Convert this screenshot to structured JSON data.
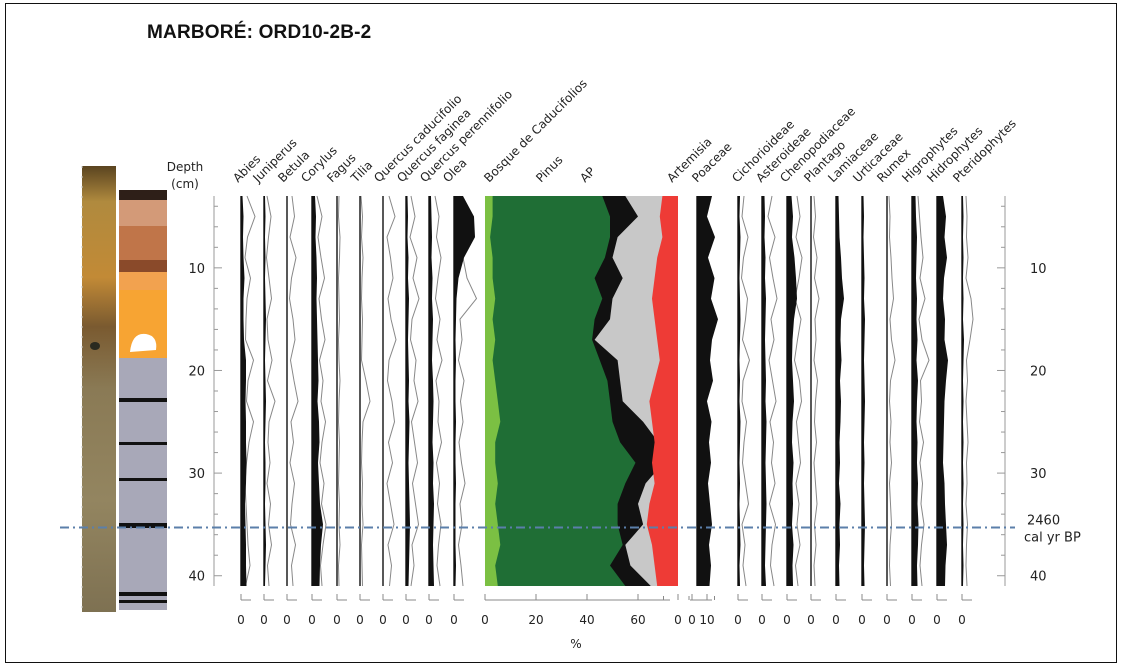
{
  "title": "MARBORÉ: ORD10-2B-2",
  "chart_data": {
    "type": "area",
    "title": "MARBORÉ: ORD10-2B-2",
    "depth_label": [
      "Depth",
      "(cm)"
    ],
    "ylabel": "Depth (cm)",
    "ylim": [
      3,
      41
    ],
    "y_ticks": [
      10,
      20,
      30,
      40
    ],
    "xlabel": "%",
    "depth": [
      3,
      5,
      7,
      9,
      11,
      13,
      15,
      17,
      19,
      21,
      23,
      25,
      27,
      29,
      31,
      33,
      35,
      37,
      39,
      41
    ],
    "annotation": {
      "depth": 35.3,
      "label": [
        "2460",
        "cal yr BP"
      ]
    },
    "taxa": [
      {
        "name": "Abies",
        "style": "silhouette",
        "values": [
          0.3,
          0.5,
          0.4,
          0.5,
          0.7,
          0.5,
          0.5,
          0.6,
          1.0,
          1.0,
          0.9,
          1.0,
          1.0,
          1.1,
          1.0,
          0.8,
          0.9,
          1.0,
          1.0,
          1.1
        ],
        "exag": [
          1.2,
          2.8,
          1.3,
          0.8,
          1.9,
          1.2,
          1.0,
          0.9,
          2.5,
          1.4,
          1.1,
          2.5,
          1.6,
          1.1,
          0.8,
          1.0,
          1.2,
          1.4,
          1.8,
          0.9
        ]
      },
      {
        "name": "Juniperus",
        "style": "silhouette",
        "values": [
          0.2,
          0.3,
          0.2,
          0.3,
          0.2,
          0.3,
          0.4,
          0.3,
          0.2,
          0.3,
          0.4,
          0.3,
          0.2,
          0.3,
          0.3,
          0.2,
          0.3,
          0.4,
          0.3,
          0.2
        ],
        "exag": [
          0.6,
          1.4,
          0.9,
          0.5,
          1.0,
          1.5,
          0.6,
          0.8,
          1.6,
          0.7,
          2.2,
          1.0,
          0.8,
          1.2,
          0.6,
          1.3,
          0.9,
          1.5,
          0.7,
          1.0
        ]
      },
      {
        "name": "Betula",
        "style": "line",
        "values": [],
        "exag": [
          1.0,
          1.5,
          0.6,
          1.8,
          0.9,
          0.5,
          1.2,
          1.6,
          0.7,
          1.4,
          2.2,
          0.8,
          1.3,
          0.6,
          1.5,
          1.0,
          0.7,
          1.7,
          0.9,
          1.2
        ]
      },
      {
        "name": "Corylus",
        "style": "silhouette",
        "values": [
          0.6,
          0.8,
          0.7,
          0.9,
          1.0,
          0.9,
          1.0,
          1.1,
          1.2,
          1.3,
          1.1,
          1.4,
          1.5,
          1.2,
          1.4,
          1.6,
          2.2,
          1.8,
          1.6,
          1.5
        ],
        "exag": [
          1.0,
          2.0,
          1.2,
          1.8,
          2.5,
          1.4,
          1.9,
          2.6,
          1.5,
          2.2,
          1.8,
          2.7,
          2.0,
          1.6,
          2.4,
          1.9,
          2.8,
          2.2,
          1.7,
          2.0
        ]
      },
      {
        "name": "Fagus",
        "style": "line",
        "values": [],
        "exag": [
          0.4,
          0.3,
          0.6,
          0.5,
          0.3,
          0.4,
          0.5,
          0.3,
          0.4,
          0.6,
          0.4,
          0.3,
          0.5,
          0.4,
          0.3,
          0.5,
          0.4,
          0.6,
          0.3,
          0.4
        ]
      },
      {
        "name": "Tilia",
        "style": "line",
        "values": [],
        "exag": [
          0.2,
          0.5,
          0.3,
          0.6,
          0.4,
          0.3,
          0.5,
          0.4,
          0.3,
          1.2,
          2.0,
          0.6,
          0.4,
          0.3,
          0.5,
          0.4,
          0.6,
          0.3,
          0.4,
          0.5
        ]
      },
      {
        "name": "Quercus caducifolio",
        "style": "line",
        "values": [],
        "exag": [
          1.2,
          2.4,
          0.8,
          1.5,
          2.0,
          1.0,
          1.6,
          2.6,
          1.2,
          0.9,
          1.8,
          2.3,
          1.1,
          1.9,
          0.8,
          1.5,
          2.2,
          1.0,
          1.7,
          1.3
        ]
      },
      {
        "name": "Quercus faginea",
        "style": "silhouette",
        "values": [
          0.3,
          0.4,
          0.3,
          0.5,
          0.4,
          0.6,
          0.5,
          0.4,
          0.5,
          0.6,
          0.5,
          0.7,
          0.6,
          0.5,
          0.6,
          0.7,
          0.8,
          0.7,
          0.6,
          0.5
        ],
        "exag": [
          1.0,
          1.8,
          0.8,
          2.2,
          1.4,
          2.6,
          1.2,
          0.9,
          2.0,
          1.6,
          2.4,
          1.1,
          1.7,
          2.3,
          1.3,
          1.9,
          2.5,
          1.2,
          1.6,
          1.0
        ]
      },
      {
        "name": "Quercus perennifolio",
        "style": "silhouette",
        "values": [
          0.4,
          0.5,
          0.6,
          0.5,
          0.7,
          0.6,
          0.8,
          0.7,
          0.6,
          0.8,
          0.9,
          0.8,
          0.7,
          0.9,
          0.8,
          1.0,
          0.9,
          0.8,
          0.9,
          1.0
        ],
        "exag": [
          1.2,
          2.0,
          1.5,
          2.4,
          1.8,
          1.3,
          2.2,
          1.6,
          2.6,
          1.4,
          2.0,
          1.8,
          2.5,
          1.5,
          2.1,
          1.7,
          2.4,
          1.9,
          1.6,
          2.2
        ]
      },
      {
        "name": "Olea",
        "style": "silhouette",
        "values": [
          1.8,
          4.0,
          4.2,
          2.0,
          0.9,
          0.5,
          0.4,
          0.3,
          0.4,
          0.3,
          0.3,
          0.4,
          0.3,
          0.3,
          0.4,
          0.3,
          0.3,
          0.3,
          0.4,
          0.3
        ],
        "exag": [
          1.0,
          2.2,
          1.5,
          1.8,
          2.6,
          4.5,
          1.2,
          1.6,
          0.9,
          2.0,
          1.3,
          1.8,
          1.0,
          1.5,
          2.2,
          1.2,
          1.6,
          0.9,
          1.4,
          1.8
        ]
      },
      {
        "name": "Bosque de Caducifolios",
        "style": "stack",
        "values": [
          3,
          3,
          2,
          3,
          3,
          4,
          3,
          4,
          3,
          4,
          5,
          6,
          4,
          4,
          5,
          4,
          5,
          6,
          4,
          5
        ]
      },
      {
        "name": "Pinus",
        "style": "stack",
        "values": [
          43,
          46,
          47,
          44,
          40,
          42,
          40,
          38,
          42,
          44,
          44,
          44,
          49,
          55,
          50,
          48,
          47,
          48,
          45,
          50
        ]
      },
      {
        "name": "AP",
        "style": "stack",
        "values": [
          55,
          60,
          52,
          50,
          54,
          50,
          49,
          43,
          52,
          53,
          54,
          62,
          68,
          70,
          63,
          60,
          62,
          55,
          57,
          65
        ]
      },
      {
        "name": "Artemisia",
        "style": "stack",
        "values": [
          6,
          7,
          6,
          8,
          9,
          10,
          9,
          8,
          7,
          9,
          11,
          10,
          9,
          10,
          9,
          11,
          12,
          10,
          9,
          8
        ]
      },
      {
        "name": "Poaceae",
        "style": "silhouette",
        "values": [
          3.0,
          2.0,
          3.6,
          2.2,
          3.5,
          2.8,
          4.2,
          3.0,
          2.6,
          3.2,
          2.0,
          2.9,
          2.4,
          2.8,
          2.2,
          2.6,
          3.0,
          2.4,
          2.8,
          2.5
        ]
      },
      {
        "name": "Cichorioideae",
        "style": "silhouette",
        "values": [
          0.4,
          0.3,
          0.5,
          0.4,
          0.3,
          0.4,
          0.5,
          0.4,
          0.3,
          0.4,
          0.3,
          0.5,
          0.4,
          0.3,
          0.4,
          0.3,
          0.4,
          0.5,
          0.3,
          0.4
        ],
        "exag": [
          1.2,
          0.8,
          2.0,
          1.1,
          0.7,
          1.9,
          1.5,
          0.9,
          2.3,
          1.0,
          0.8,
          1.7,
          1.2,
          0.9,
          1.5,
          2.1,
          0.8,
          1.4,
          1.0,
          1.6
        ]
      },
      {
        "name": "Asteroideae",
        "style": "silhouette",
        "values": [
          0.5,
          0.6,
          0.5,
          0.7,
          0.6,
          0.8,
          0.7,
          0.6,
          0.7,
          0.8,
          0.7,
          0.9,
          0.8,
          0.7,
          0.8,
          0.9,
          0.8,
          0.7,
          0.6,
          0.8
        ],
        "exag": [
          2.0,
          1.2,
          2.6,
          1.5,
          2.2,
          3.0,
          1.8,
          2.4,
          1.4,
          2.1,
          2.8,
          1.6,
          2.3,
          1.9,
          2.6,
          1.5,
          2.7,
          2.0,
          1.7,
          2.4
        ]
      },
      {
        "name": "Chenopodiaceae",
        "style": "silhouette",
        "values": [
          0.9,
          1.2,
          1.0,
          1.5,
          1.8,
          2.0,
          1.4,
          1.1,
          1.0,
          1.2,
          1.4,
          1.1,
          1.0,
          1.3,
          1.1,
          1.2,
          1.0,
          1.3,
          1.1,
          1.2
        ],
        "exag": [
          2.0,
          2.6,
          1.8,
          3.0,
          2.4,
          1.6,
          2.8,
          2.1,
          1.5,
          2.5,
          2.9,
          1.9,
          2.3,
          2.7,
          1.8,
          2.4,
          2.0,
          2.6,
          1.7,
          2.2
        ]
      },
      {
        "name": "Plantago",
        "style": "line",
        "values": [],
        "exag": [
          0.6,
          0.9,
          0.5,
          1.2,
          0.7,
          1.6,
          0.8,
          1.0,
          0.6,
          1.3,
          0.9,
          0.7,
          1.1,
          0.6,
          0.9,
          1.2,
          0.7,
          1.0,
          0.6,
          0.8
        ]
      },
      {
        "name": "Lamiaceae",
        "style": "silhouette",
        "values": [
          0.5,
          0.6,
          0.7,
          1.0,
          1.2,
          1.6,
          1.0,
          0.9,
          1.1,
          0.8,
          1.0,
          0.9,
          0.7,
          0.8,
          0.6,
          0.9,
          0.7,
          0.8,
          0.6,
          0.7
        ]
      },
      {
        "name": "Urticaceae",
        "style": "silhouette",
        "values": [
          0.3,
          0.4,
          0.3,
          0.4,
          0.5,
          0.4,
          0.6,
          0.5,
          0.4,
          0.5,
          0.6,
          0.5,
          0.4,
          0.5,
          0.4,
          0.5,
          0.6,
          0.5,
          0.4,
          0.5
        ]
      },
      {
        "name": "Rumex",
        "style": "line",
        "values": [],
        "exag": [
          0.4,
          0.6,
          0.5,
          0.8,
          1.0,
          1.3,
          0.6,
          0.9,
          1.6,
          0.7,
          0.5,
          0.8,
          0.6,
          0.9,
          0.5,
          0.7,
          0.9,
          0.6,
          0.5,
          0.7
        ]
      },
      {
        "name": "Higrophytes",
        "style": "silhouette",
        "values": [
          0.7,
          0.8,
          1.0,
          0.9,
          0.8,
          1.0,
          0.9,
          1.1,
          0.9,
          1.2,
          1.0,
          0.9,
          1.1,
          1.0,
          1.2,
          1.1,
          1.3,
          1.2,
          1.0,
          1.1
        ],
        "exag": [
          1.2,
          1.5,
          1.8,
          2.2,
          1.6,
          2.6,
          1.4,
          2.0,
          3.4,
          1.7,
          1.9,
          1.5,
          2.3,
          1.6,
          2.1,
          1.8,
          2.4,
          1.9,
          1.6,
          2.0
        ]
      },
      {
        "name": "Hidrophytes",
        "style": "silhouette",
        "values": [
          1.2,
          1.8,
          1.5,
          2.0,
          1.4,
          1.2,
          1.6,
          1.5,
          2.2,
          1.8,
          1.5,
          1.4,
          1.3,
          1.2,
          1.5,
          1.6,
          1.8,
          2.0,
          1.7,
          1.6
        ]
      },
      {
        "name": "Pteridophytes",
        "style": "silhouette",
        "values": [
          0.2,
          0.3,
          0.2,
          0.3,
          0.2,
          0.3,
          0.2,
          0.4,
          0.3,
          0.2,
          0.3,
          0.2,
          0.3,
          0.2,
          0.3,
          0.2,
          0.3,
          0.2,
          0.3,
          0.2
        ],
        "exag": [
          0.8,
          1.0,
          0.9,
          1.2,
          0.8,
          1.8,
          2.2,
          1.6,
          0.9,
          1.1,
          0.8,
          1.0,
          1.2,
          0.9,
          1.0,
          0.8,
          1.1,
          0.9,
          0.8,
          1.0
        ]
      }
    ],
    "x_tick_labels": {
      "individual": [
        "0",
        "0",
        "0",
        "0",
        "0",
        "0",
        "0",
        "0",
        "0",
        "0"
      ],
      "main": [
        "0",
        "20",
        "40",
        "60"
      ],
      "artemisia": [
        "0"
      ],
      "poaceae": [
        "0",
        "10"
      ],
      "herbs": [
        "0",
        "0",
        "0",
        "0",
        "0",
        "0",
        "0",
        "0",
        "0",
        "0"
      ]
    },
    "colors": {
      "silhouette": "#111111",
      "exaggeration_line": "#888888",
      "bosque": "#7bc043",
      "pinus": "#1f6e35",
      "ap": "#111111",
      "nap": "#c8c8c8",
      "artemisia": "#ee3b36",
      "annotation_line": "#5b7faa"
    }
  }
}
